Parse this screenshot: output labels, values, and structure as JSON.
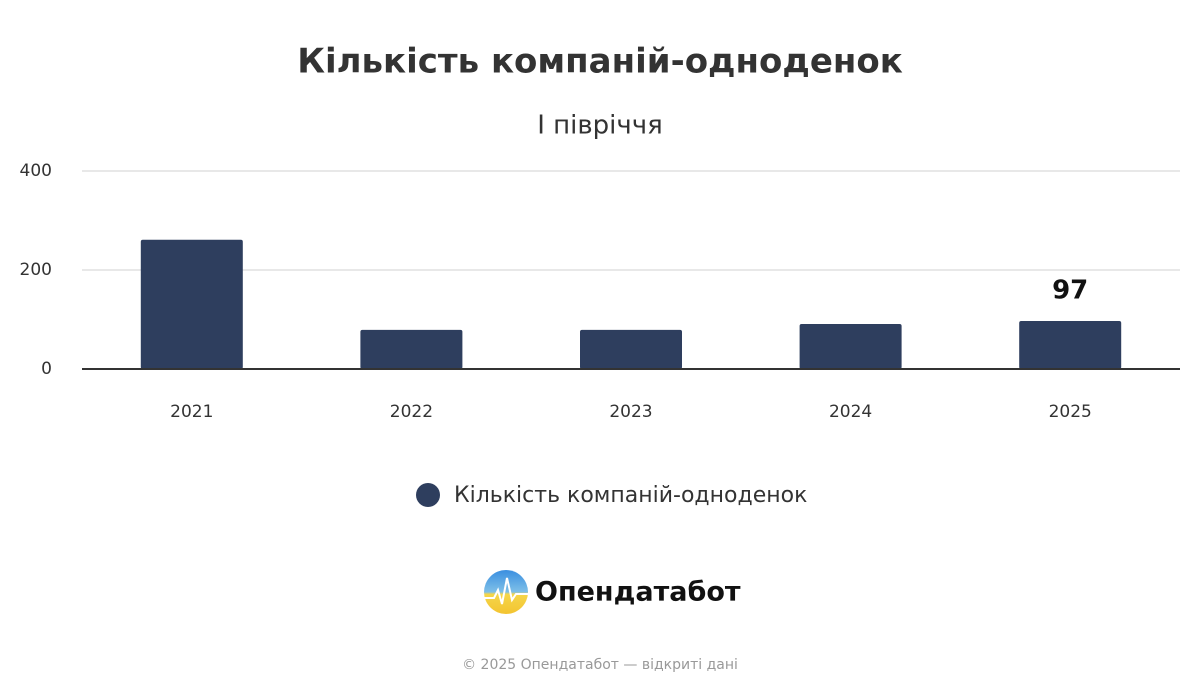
{
  "chart_data": {
    "type": "bar",
    "title": "Кількість компаній-одноденок",
    "subtitle": "І півріччя",
    "categories": [
      "2021",
      "2022",
      "2023",
      "2024",
      "2025"
    ],
    "series": [
      {
        "name": "Кількість компаній-одноденок",
        "color": "#2e3e5e",
        "values": [
          261,
          79,
          79,
          91,
          97
        ]
      }
    ],
    "show_value_label": [
      false,
      false,
      false,
      false,
      true
    ],
    "ylim": [
      0,
      400
    ],
    "yticks": [
      0,
      200,
      400
    ],
    "grid": true,
    "legend": "bottom"
  },
  "logo": "Опендатабот",
  "footer": "© 2025 Опендатабот — відкриті дані"
}
